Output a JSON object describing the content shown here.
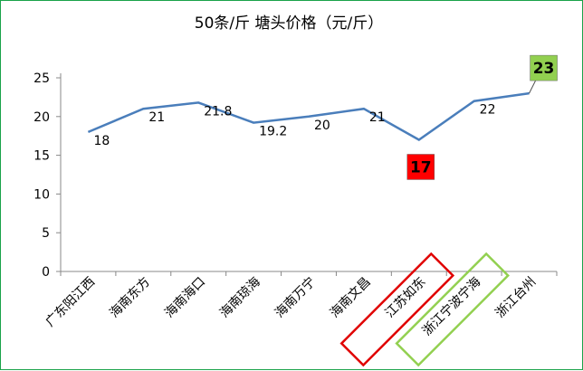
{
  "chart_data": {
    "type": "line",
    "title": "50条/斤  塘头价格（元/斤）",
    "categories": [
      "广东阳江西",
      "海南东方",
      "海南海口",
      "海南琼海",
      "海南万宁",
      "海南文昌",
      "江苏如东",
      "浙江宁波宁海",
      "浙江台州"
    ],
    "series": [
      {
        "values": [
          18,
          21,
          21.8,
          19.2,
          20,
          21,
          17,
          22,
          23
        ]
      }
    ],
    "data_labels": [
      "18",
      "21",
      "21.8",
      "19.2",
      "20",
      "21",
      "17",
      "22",
      "23"
    ],
    "yticks": [
      "0",
      "5",
      "10",
      "15",
      "20",
      "25"
    ],
    "ylim": [
      0,
      25
    ],
    "grid": false,
    "line_color": "#4a7ebb",
    "highlights": {
      "min": {
        "index": 6,
        "label": "17",
        "color": "#ff0000"
      },
      "max": {
        "index": 8,
        "label": "23",
        "color": "#92d050"
      }
    },
    "category_boxes": [
      {
        "index": 6,
        "color": "#e00000"
      },
      {
        "index": 7,
        "color": "#92d050"
      }
    ]
  }
}
